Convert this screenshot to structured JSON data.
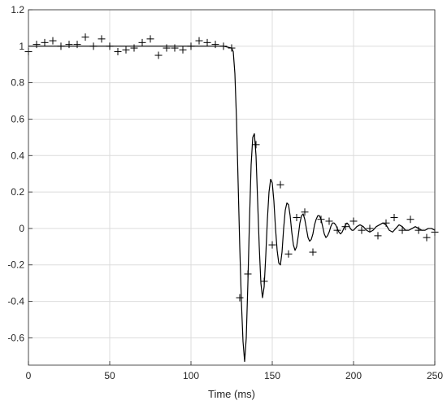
{
  "chart_data": {
    "type": "line",
    "title": "",
    "xlabel": "Time (ms)",
    "ylabel": "",
    "xlim": [
      0,
      250
    ],
    "ylim": [
      -0.75,
      1.2
    ],
    "grid": true,
    "x_ticks": [
      0,
      50,
      100,
      150,
      200,
      250
    ],
    "x_tick_labels": [
      "0",
      "50",
      "100",
      "150",
      "200",
      "250"
    ],
    "y_ticks": [
      -0.6,
      -0.4,
      -0.2,
      0,
      0.2,
      0.4,
      0.6,
      0.8,
      1,
      1.2
    ],
    "y_tick_labels": [
      "-0.6",
      "-0.4",
      "-0.2",
      "0",
      "0.2",
      "0.4",
      "0.6",
      "0.8",
      "1",
      "1.2"
    ],
    "series": [
      {
        "style": "line",
        "color": "#000000",
        "x": [
          0,
          20,
          40,
          60,
          80,
          100,
          120,
          125,
          126,
          127,
          128,
          129,
          130,
          131,
          132,
          133,
          134,
          135,
          136,
          137,
          138,
          139,
          140,
          141,
          142,
          143,
          144,
          145,
          146,
          147,
          148,
          149,
          150,
          151,
          152,
          153,
          154,
          155,
          156,
          157,
          158,
          159,
          160,
          161,
          162,
          163,
          164,
          165,
          166,
          167,
          168,
          169,
          170,
          171,
          172,
          173,
          174,
          175,
          176,
          177,
          178,
          179,
          180,
          181,
          182,
          183,
          184,
          185,
          186,
          187,
          188,
          189,
          190,
          191,
          192,
          193,
          194,
          195,
          196,
          197,
          198,
          199,
          200,
          202,
          204,
          206,
          208,
          210,
          212,
          214,
          216,
          218,
          220,
          222,
          224,
          226,
          228,
          230,
          232,
          234,
          236,
          238,
          240,
          242,
          244,
          246,
          248,
          250
        ],
        "y": [
          1.0,
          1.0,
          1.0,
          1.0,
          1.0,
          1.0,
          1.0,
          0.99,
          0.97,
          0.85,
          0.6,
          0.25,
          -0.1,
          -0.4,
          -0.62,
          -0.73,
          -0.6,
          -0.3,
          0.05,
          0.35,
          0.5,
          0.52,
          0.4,
          0.15,
          -0.1,
          -0.3,
          -0.38,
          -0.32,
          -0.15,
          0.05,
          0.2,
          0.27,
          0.25,
          0.15,
          0.0,
          -0.12,
          -0.19,
          -0.2,
          -0.13,
          0.0,
          0.1,
          0.14,
          0.13,
          0.07,
          -0.02,
          -0.09,
          -0.12,
          -0.1,
          -0.04,
          0.03,
          0.07,
          0.08,
          0.05,
          0.0,
          -0.05,
          -0.07,
          -0.06,
          -0.03,
          0.02,
          0.05,
          0.07,
          0.07,
          0.05,
          0.01,
          -0.03,
          -0.05,
          -0.04,
          -0.02,
          0.01,
          0.03,
          0.03,
          0.02,
          0.0,
          -0.02,
          -0.03,
          -0.02,
          0.0,
          0.02,
          0.03,
          0.02,
          0.0,
          -0.01,
          -0.01,
          0.01,
          0.02,
          0.01,
          -0.01,
          -0.02,
          -0.01,
          0.01,
          0.02,
          0.03,
          0.02,
          -0.01,
          -0.02,
          0.0,
          0.02,
          0.01,
          -0.01,
          -0.01,
          0.0,
          0.01,
          0.0,
          -0.01,
          -0.01,
          0.0,
          0.0,
          -0.01
        ]
      },
      {
        "style": "markers",
        "marker": "+",
        "color": "#000000",
        "x": [
          0,
          5,
          10,
          15,
          20,
          25,
          30,
          35,
          40,
          45,
          50,
          55,
          60,
          65,
          70,
          75,
          80,
          85,
          90,
          95,
          100,
          105,
          110,
          115,
          120,
          125,
          130,
          135,
          140,
          145,
          150,
          155,
          160,
          165,
          170,
          175,
          180,
          185,
          190,
          195,
          200,
          205,
          210,
          215,
          220,
          225,
          230,
          235,
          240,
          245,
          250
        ],
        "y": [
          0.97,
          1.01,
          1.02,
          1.03,
          1.0,
          1.01,
          1.01,
          1.05,
          1.0,
          1.04,
          1.0,
          0.97,
          0.98,
          0.99,
          1.02,
          1.04,
          0.95,
          0.99,
          0.99,
          0.98,
          1.0,
          1.03,
          1.02,
          1.01,
          1.0,
          0.99,
          -0.38,
          -0.25,
          0.46,
          -0.29,
          -0.09,
          0.24,
          -0.14,
          0.06,
          0.09,
          -0.13,
          0.05,
          0.04,
          -0.01,
          0.01,
          0.04,
          -0.01,
          0.0,
          -0.04,
          0.03,
          0.06,
          -0.01,
          0.05,
          -0.01,
          -0.05,
          -0.02
        ]
      }
    ]
  }
}
